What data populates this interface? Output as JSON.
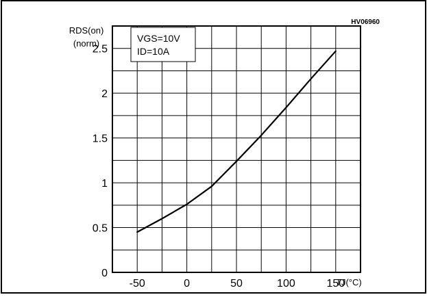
{
  "chart_data": {
    "type": "line",
    "reference_code": "HV06960",
    "ylabel_line1": "RDS(on)",
    "ylabel_line2": "(norm)",
    "xlabel": "TJ(°C)",
    "conditions": [
      "VGS=10V",
      "ID=10A"
    ],
    "xlim": [
      -75,
      175
    ],
    "ylim": [
      0,
      2.75
    ],
    "x_ticks": [
      -50,
      0,
      50,
      100,
      150
    ],
    "x_tick_labels": [
      "-50",
      "0",
      "50",
      "100",
      "150"
    ],
    "y_ticks": [
      0,
      0.5,
      1,
      1.5,
      2,
      2.5
    ],
    "y_tick_labels": [
      "0",
      "0.5",
      "1",
      "1.5",
      "2",
      "2.5"
    ],
    "grid": true,
    "series": [
      {
        "x": [
          -50,
          -25,
          0,
          25,
          50,
          75,
          100,
          125,
          150
        ],
        "y": [
          0.45,
          0.6,
          0.76,
          0.96,
          1.24,
          1.53,
          1.84,
          2.16,
          2.47
        ]
      }
    ]
  }
}
